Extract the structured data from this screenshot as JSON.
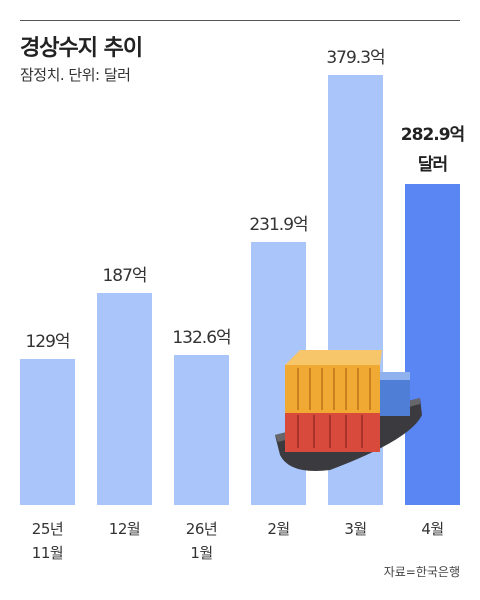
{
  "chart_data": {
    "type": "bar",
    "title": "경상수지 추이",
    "subtitle": "잠정치. 단위: 달러",
    "source": "자료=한국은행",
    "categories": [
      "25년\n11월",
      "12월",
      "26년\n1월",
      "2월",
      "3월",
      "4월"
    ],
    "values": [
      129,
      187,
      132.6,
      231.9,
      379.3,
      282.9
    ],
    "value_labels": [
      "129억",
      "187억",
      "132.6억",
      "231.9억",
      "379.3억",
      "282.9억\n달러"
    ],
    "colors": [
      "#a9c5fa",
      "#a9c5fa",
      "#a9c5fa",
      "#a9c5fa",
      "#a9c5fa",
      "#5a86f3"
    ]
  }
}
